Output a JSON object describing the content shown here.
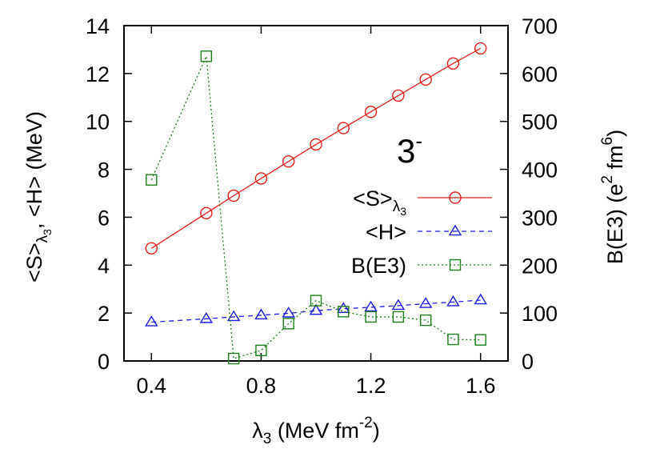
{
  "chart_data": {
    "type": "line",
    "annotation": "3",
    "annotation_sup": "-",
    "xlabel": {
      "base": "λ",
      "sub": "3",
      "mid": " (MeV fm",
      "sup": "-2",
      "end": ")"
    },
    "ylabel_left": {
      "p1": "<S>",
      "sub1": "λ",
      "sub2": "3",
      "p2": ", <H> (MeV)"
    },
    "ylabel_right": {
      "p1": "B(E3) (e",
      "sup1": "2",
      "p2": " fm",
      "sup2": "6",
      "p3": ")"
    },
    "xlim": [
      0.3,
      1.7
    ],
    "ylim_left": [
      0,
      14
    ],
    "ylim_right": [
      0,
      700
    ],
    "x_ticks": [
      "0.4",
      "0.8",
      "1.2",
      "1.6"
    ],
    "y_left_ticks": [
      "0",
      "2",
      "4",
      "6",
      "8",
      "10",
      "12",
      "14"
    ],
    "y_right_ticks": [
      "0",
      "100",
      "200",
      "300",
      "400",
      "500",
      "600",
      "700"
    ],
    "legend_position": "right",
    "series": [
      {
        "name": "<S>",
        "name_sub1": "λ",
        "name_sub2": "3",
        "axis": "left",
        "color": "#e8201b",
        "marker": "circle",
        "dash": "solid",
        "x": [
          0.4,
          0.6,
          0.7,
          0.8,
          0.9,
          1.0,
          1.1,
          1.2,
          1.3,
          1.4,
          1.5,
          1.6
        ],
        "values": [
          4.7,
          6.17,
          6.9,
          7.62,
          8.33,
          9.04,
          9.72,
          10.4,
          11.08,
          11.75,
          12.42,
          13.05
        ]
      },
      {
        "name": "<H>",
        "axis": "left",
        "color": "#1c1ce6",
        "marker": "triangle",
        "dash": "dashed",
        "x": [
          0.4,
          0.6,
          0.7,
          0.8,
          0.9,
          1.0,
          1.1,
          1.2,
          1.3,
          1.4,
          1.5,
          1.6
        ],
        "values": [
          1.62,
          1.76,
          1.84,
          1.91,
          1.99,
          2.1,
          2.18,
          2.24,
          2.31,
          2.39,
          2.46,
          2.54
        ]
      },
      {
        "name": "B(E3)",
        "axis": "right",
        "color": "#1b7f1b",
        "marker": "square",
        "dash": "dotted",
        "x": [
          0.4,
          0.6,
          0.7,
          0.8,
          0.9,
          1.0,
          1.1,
          1.2,
          1.3,
          1.4,
          1.5,
          1.6
        ],
        "values": [
          378,
          636,
          5,
          22,
          78,
          126,
          103,
          92,
          92,
          85,
          45,
          44
        ]
      }
    ]
  }
}
